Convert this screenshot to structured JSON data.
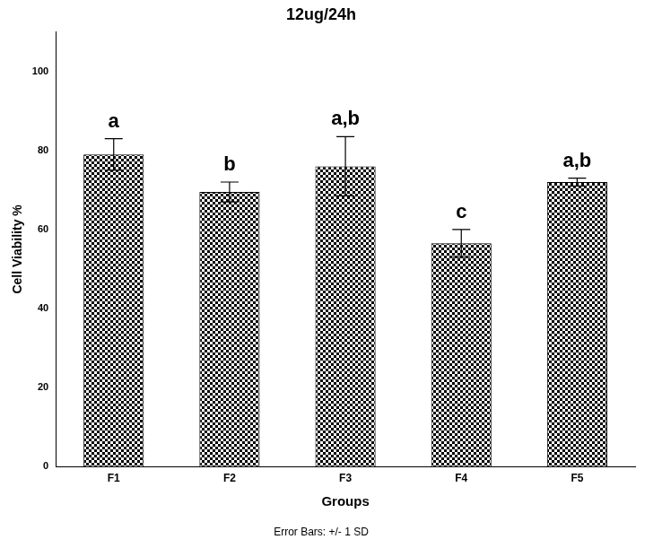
{
  "chart_data": {
    "type": "bar",
    "title": "12ug/24h",
    "x_label": "Groups",
    "y_label": "Cell Viability %",
    "footnote": "Error Bars: +/- 1 SD",
    "categories": [
      "F1",
      "F2",
      "F3",
      "F4",
      "F5"
    ],
    "values": [
      79,
      69.5,
      76,
      56.5,
      72
    ],
    "errors": [
      4,
      2.5,
      7.5,
      3.5,
      1
    ],
    "annotations": [
      "a",
      "b",
      "a,b",
      "c",
      "a,b"
    ],
    "color": "#000000",
    "ylim": [
      0,
      110
    ],
    "yticks": [
      0,
      20,
      40,
      60,
      80,
      100
    ],
    "grid": false
  }
}
